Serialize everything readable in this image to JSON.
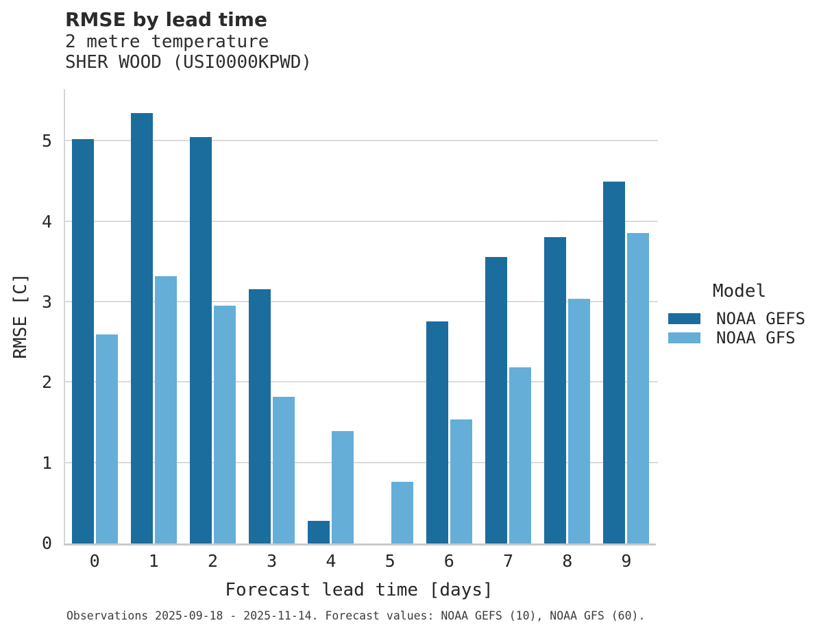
{
  "title": "RMSE by lead time",
  "subtitle_line1": "2 metre temperature",
  "subtitle_line2": "SHER WOOD (USI0000KPWD)",
  "caption": "Observations 2025-09-18 - 2025-11-14. Forecast values: NOAA GEFS (10), NOAA GFS (60).",
  "colors": {
    "gefs": "#1b6d9d",
    "gfs": "#65aed8",
    "gridline": "#dadada",
    "axis_line": "#c9c9c9"
  },
  "legend": {
    "title": "Model",
    "items": [
      {
        "label": "NOAA GEFS",
        "color": "#1b6d9d"
      },
      {
        "label": "NOAA GFS",
        "color": "#65aed8"
      }
    ]
  },
  "chart_data": {
    "type": "bar",
    "title": "RMSE by lead time",
    "subtitle": "2 metre temperature — SHER WOOD (USI0000KPWD)",
    "xlabel": "Forecast lead time [days]",
    "ylabel": "RMSE [C]",
    "categories": [
      "0",
      "1",
      "2",
      "3",
      "4",
      "5",
      "6",
      "7",
      "8",
      "9"
    ],
    "series": [
      {
        "name": "NOAA GEFS",
        "color": "#1b6d9d",
        "values": [
          5.03,
          5.35,
          5.05,
          3.16,
          0.28,
          null,
          2.76,
          3.56,
          3.81,
          4.5
        ]
      },
      {
        "name": "NOAA GFS",
        "color": "#65aed8",
        "values": [
          2.6,
          3.32,
          2.96,
          1.82,
          1.4,
          0.77,
          1.54,
          2.19,
          3.04,
          3.86
        ]
      }
    ],
    "ylim": [
      0,
      5.65
    ],
    "yticks": [
      0,
      1,
      2,
      3,
      4,
      5
    ],
    "grid": true,
    "legend_position": "right"
  }
}
